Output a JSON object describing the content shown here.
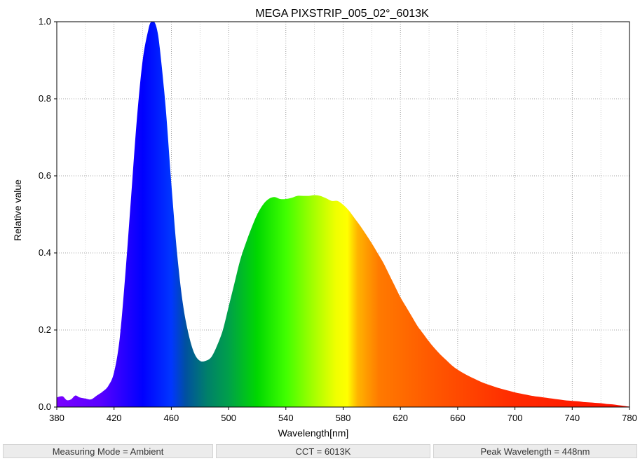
{
  "chart_data": {
    "type": "area",
    "title": "MEGA PIXSTRIP_005_02°_6013K",
    "xlabel": "Wavelength[nm]",
    "ylabel": "Relative value",
    "xlim": [
      380,
      780
    ],
    "ylim": [
      0,
      1.0
    ],
    "x_ticks": [
      "380",
      "420",
      "460",
      "500",
      "540",
      "580",
      "620",
      "660",
      "700",
      "740",
      "780"
    ],
    "y_ticks": [
      "0.0",
      "0.2",
      "0.4",
      "0.6",
      "0.8",
      "1.0"
    ],
    "grid": true,
    "fill": "visible-spectrum color gradient",
    "x": [
      380,
      384,
      387,
      390,
      393,
      396,
      400,
      404,
      408,
      412,
      416,
      420,
      424,
      428,
      432,
      436,
      440,
      444,
      446,
      448,
      450,
      452,
      456,
      460,
      464,
      468,
      472,
      476,
      480,
      484,
      488,
      492,
      496,
      500,
      504,
      508,
      512,
      516,
      520,
      524,
      528,
      532,
      536,
      540,
      544,
      548,
      552,
      556,
      560,
      564,
      568,
      572,
      576,
      580,
      584,
      588,
      592,
      596,
      600,
      604,
      608,
      612,
      616,
      620,
      624,
      628,
      632,
      636,
      640,
      644,
      648,
      652,
      656,
      660,
      664,
      668,
      672,
      676,
      680,
      684,
      688,
      692,
      696,
      700,
      704,
      708,
      712,
      716,
      720,
      724,
      728,
      732,
      736,
      740,
      744,
      748,
      752,
      756,
      760,
      764,
      768,
      772,
      776,
      780
    ],
    "values": [
      0.025,
      0.028,
      0.018,
      0.02,
      0.03,
      0.025,
      0.022,
      0.02,
      0.03,
      0.04,
      0.055,
      0.09,
      0.18,
      0.35,
      0.55,
      0.75,
      0.9,
      0.98,
      1.0,
      1.0,
      0.98,
      0.93,
      0.78,
      0.58,
      0.4,
      0.27,
      0.19,
      0.14,
      0.12,
      0.12,
      0.13,
      0.16,
      0.2,
      0.26,
      0.32,
      0.38,
      0.425,
      0.465,
      0.5,
      0.525,
      0.54,
      0.545,
      0.54,
      0.54,
      0.543,
      0.548,
      0.548,
      0.548,
      0.55,
      0.548,
      0.542,
      0.535,
      0.535,
      0.525,
      0.51,
      0.49,
      0.47,
      0.448,
      0.425,
      0.4,
      0.375,
      0.345,
      0.315,
      0.285,
      0.26,
      0.235,
      0.21,
      0.19,
      0.17,
      0.152,
      0.136,
      0.122,
      0.108,
      0.097,
      0.088,
      0.08,
      0.073,
      0.066,
      0.06,
      0.055,
      0.05,
      0.046,
      0.042,
      0.038,
      0.035,
      0.032,
      0.029,
      0.027,
      0.025,
      0.023,
      0.021,
      0.019,
      0.017,
      0.016,
      0.015,
      0.013,
      0.012,
      0.011,
      0.01,
      0.008,
      0.007,
      0.005,
      0.003,
      0.001
    ]
  },
  "status_bar": {
    "measuring_mode": "Measuring Mode = Ambient",
    "cct": "CCT = 6013K",
    "peak_wavelength": "Peak Wavelength = 448nm"
  }
}
